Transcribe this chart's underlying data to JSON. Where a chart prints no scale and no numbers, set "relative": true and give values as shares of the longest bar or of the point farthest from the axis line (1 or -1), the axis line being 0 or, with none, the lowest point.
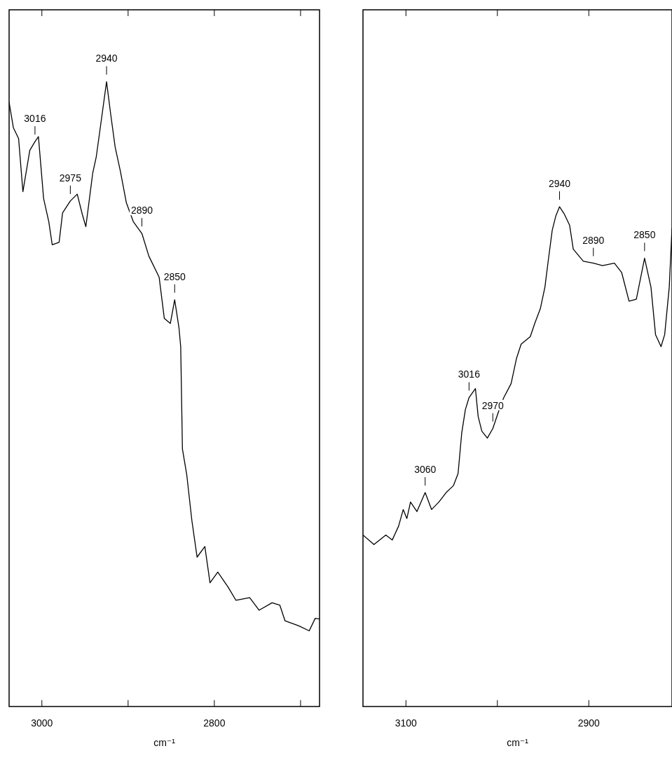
{
  "chart_data": [
    {
      "type": "line",
      "relative": true,
      "xlabel": "cm⁻¹",
      "xlim": [
        3038,
        2678
      ],
      "xticks": [
        3000,
        {
          "value": 2900,
          "label": null
        },
        2800,
        {
          "value": 2700,
          "label": null
        }
      ],
      "color": "#000000",
      "x": [
        3038,
        3033,
        3027,
        3022,
        3014,
        3008,
        3004,
        3000,
        2998,
        2992,
        2988,
        2980,
        2976,
        2967,
        2959,
        2953,
        2949,
        2941,
        2937,
        2931,
        2925,
        2920,
        2915,
        2909,
        2902,
        2894,
        2884,
        2876,
        2864,
        2858,
        2851,
        2846,
        2841,
        2839,
        2837,
        2832,
        2826,
        2820,
        2811,
        2805,
        2796,
        2784,
        2775,
        2759,
        2748,
        2733,
        2724,
        2718,
        2702,
        2690,
        2683,
        2678
      ],
      "values": [
        0.967,
        0.926,
        0.909,
        0.824,
        0.89,
        0.904,
        0.912,
        0.846,
        0.813,
        0.776,
        0.739,
        0.743,
        0.79,
        0.809,
        0.82,
        0.787,
        0.768,
        0.854,
        0.879,
        0.939,
        1.0,
        0.946,
        0.895,
        0.857,
        0.806,
        0.776,
        0.757,
        0.721,
        0.687,
        0.621,
        0.613,
        0.651,
        0.606,
        0.576,
        0.412,
        0.371,
        0.297,
        0.239,
        0.256,
        0.198,
        0.215,
        0.191,
        0.17,
        0.174,
        0.154,
        0.166,
        0.162,
        0.137,
        0.129,
        0.121,
        0.141,
        0.14
      ],
      "annotations": [
        {
          "text": "3016",
          "x": 3008,
          "y": 0.904
        },
        {
          "text": "2975",
          "x": 2967,
          "y": 0.809
        },
        {
          "text": "2940",
          "x": 2925,
          "y": 1.0
        },
        {
          "text": "2890",
          "x": 2884,
          "y": 0.757
        },
        {
          "text": "2850",
          "x": 2846,
          "y": 0.651
        }
      ]
    },
    {
      "type": "line",
      "relative": true,
      "xlabel": "cm⁻¹",
      "xlim": [
        3147,
        2809
      ],
      "xticks": [
        3100,
        {
          "value": 3000,
          "label": null
        },
        2900
      ],
      "color": "#000000",
      "x": [
        3147,
        3135,
        3122,
        3115,
        3108,
        3103,
        3099,
        3095,
        3088,
        3079,
        3072,
        3064,
        3056,
        3048,
        3043,
        3039,
        3035,
        3031,
        3024,
        3021,
        3017,
        3011,
        3005,
        2998,
        2993,
        2985,
        2979,
        2974,
        2964,
        2959,
        2953,
        2948,
        2944,
        2940,
        2936,
        2932,
        2927,
        2921,
        2917,
        2906,
        2895,
        2885,
        2872,
        2864,
        2856,
        2848,
        2839,
        2832,
        2827,
        2821,
        2817,
        2812,
        2809
      ],
      "values": [
        0.343,
        0.324,
        0.343,
        0.333,
        0.361,
        0.394,
        0.376,
        0.409,
        0.39,
        0.428,
        0.394,
        0.409,
        0.428,
        0.442,
        0.466,
        0.547,
        0.594,
        0.618,
        0.636,
        0.58,
        0.551,
        0.537,
        0.556,
        0.594,
        0.618,
        0.646,
        0.697,
        0.725,
        0.74,
        0.767,
        0.796,
        0.839,
        0.897,
        0.953,
        0.982,
        1.0,
        0.986,
        0.963,
        0.915,
        0.891,
        0.887,
        0.882,
        0.887,
        0.868,
        0.811,
        0.815,
        0.897,
        0.839,
        0.744,
        0.72,
        0.744,
        0.839,
        0.957
      ],
      "annotations": [
        {
          "text": "3060",
          "x": 3079,
          "y": 0.428
        },
        {
          "text": "3016",
          "x": 3031,
          "y": 0.618
        },
        {
          "text": "2970",
          "x": 3005,
          "y": 0.556
        },
        {
          "text": "2940",
          "x": 2932,
          "y": 1.0
        },
        {
          "text": "2890",
          "x": 2895,
          "y": 0.887
        },
        {
          "text": "2850",
          "x": 2839,
          "y": 0.897
        }
      ]
    }
  ]
}
